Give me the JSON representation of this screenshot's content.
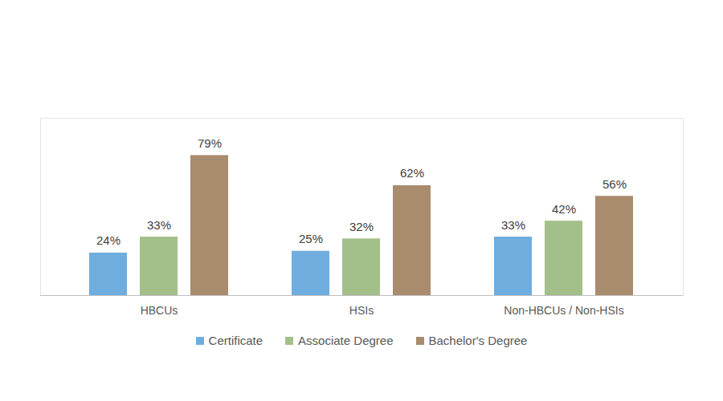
{
  "chart_data": {
    "type": "bar",
    "categories": [
      "HBCUs",
      "HSIs",
      "Non-HBCUs / Non-HSIs"
    ],
    "series": [
      {
        "name": "Certificate",
        "color": "#6fadde",
        "values": [
          24,
          25,
          33
        ],
        "value_labels": [
          "24%",
          "25%",
          "33%"
        ]
      },
      {
        "name": "Associate Degree",
        "color": "#a3bf8a",
        "values": [
          33,
          32,
          42
        ],
        "value_labels": [
          "33%",
          "32%",
          "42%"
        ]
      },
      {
        "name": "Bachelor's Degree",
        "color": "#a98b6d",
        "values": [
          79,
          62,
          56
        ],
        "value_labels": [
          "79%",
          "62%",
          "56%"
        ]
      }
    ],
    "ylim": [
      0,
      100
    ],
    "data_labels": true,
    "tick_labels": "x",
    "legend": "bottom",
    "grid": false
  }
}
